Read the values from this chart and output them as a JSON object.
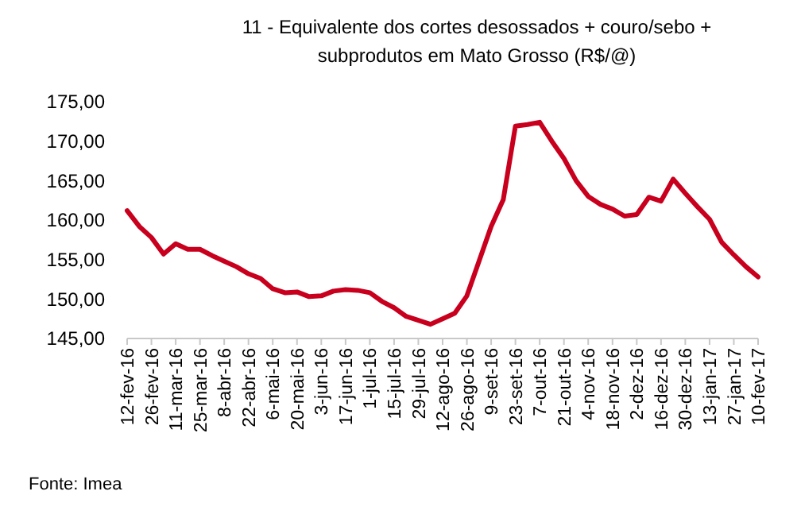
{
  "chart_data": {
    "type": "line",
    "title": "11 - Equivalente dos cortes desossados + couro/sebo + subprodutos em Mato Grosso (R$/@)",
    "categories": [
      "12-fev-16",
      null,
      "26-fev-16",
      null,
      "11-mar-16",
      null,
      "25-mar-16",
      null,
      "8-abr-16",
      null,
      "22-abr-16",
      null,
      "6-mai-16",
      null,
      "20-mai-16",
      null,
      "3-jun-16",
      null,
      "17-jun-16",
      null,
      "1-jul-16",
      null,
      "15-jul-16",
      null,
      "29-jul-16",
      null,
      "12-ago-16",
      null,
      "26-ago-16",
      null,
      "9-set-16",
      null,
      "23-set-16",
      null,
      "7-out-16",
      null,
      "21-out-16",
      null,
      "4-nov-16",
      null,
      "18-nov-16",
      null,
      "2-dez-16",
      null,
      "16-dez-16",
      null,
      "30-dez-16",
      null,
      "13-jan-17",
      null,
      "27-jan-17",
      null,
      "10-fev-17"
    ],
    "series": [
      {
        "color": "#c8001e",
        "values": [
          161.2,
          159.2,
          157.8,
          155.7,
          157.0,
          156.3,
          156.3,
          155.5,
          154.8,
          154.1,
          153.2,
          152.6,
          151.3,
          150.8,
          150.9,
          150.3,
          150.4,
          151.0,
          151.2,
          151.1,
          150.8,
          149.7,
          148.9,
          147.8,
          147.3,
          146.8,
          147.5,
          148.2,
          150.4,
          154.8,
          159.2,
          162.6,
          171.9,
          172.1,
          172.4,
          170.0,
          167.8,
          165.0,
          163.0,
          162.0,
          161.4,
          160.5,
          160.7,
          162.9,
          162.4,
          165.2,
          163.4,
          161.7,
          160.1,
          157.2,
          155.6,
          154.1,
          152.8
        ]
      }
    ],
    "ylim": [
      145,
      175
    ],
    "yticks": [
      {
        "value": 145,
        "label": "145,00"
      },
      {
        "value": 150,
        "label": "150,00"
      },
      {
        "value": 155,
        "label": "155,00"
      },
      {
        "value": 160,
        "label": "160,00"
      },
      {
        "value": 165,
        "label": "165,00"
      },
      {
        "value": 170,
        "label": "170,00"
      },
      {
        "value": 175,
        "label": "175,00"
      }
    ],
    "grid": false,
    "marker": "none",
    "line_style": "solid",
    "annotations": [
      "Fonte: Imea"
    ]
  }
}
